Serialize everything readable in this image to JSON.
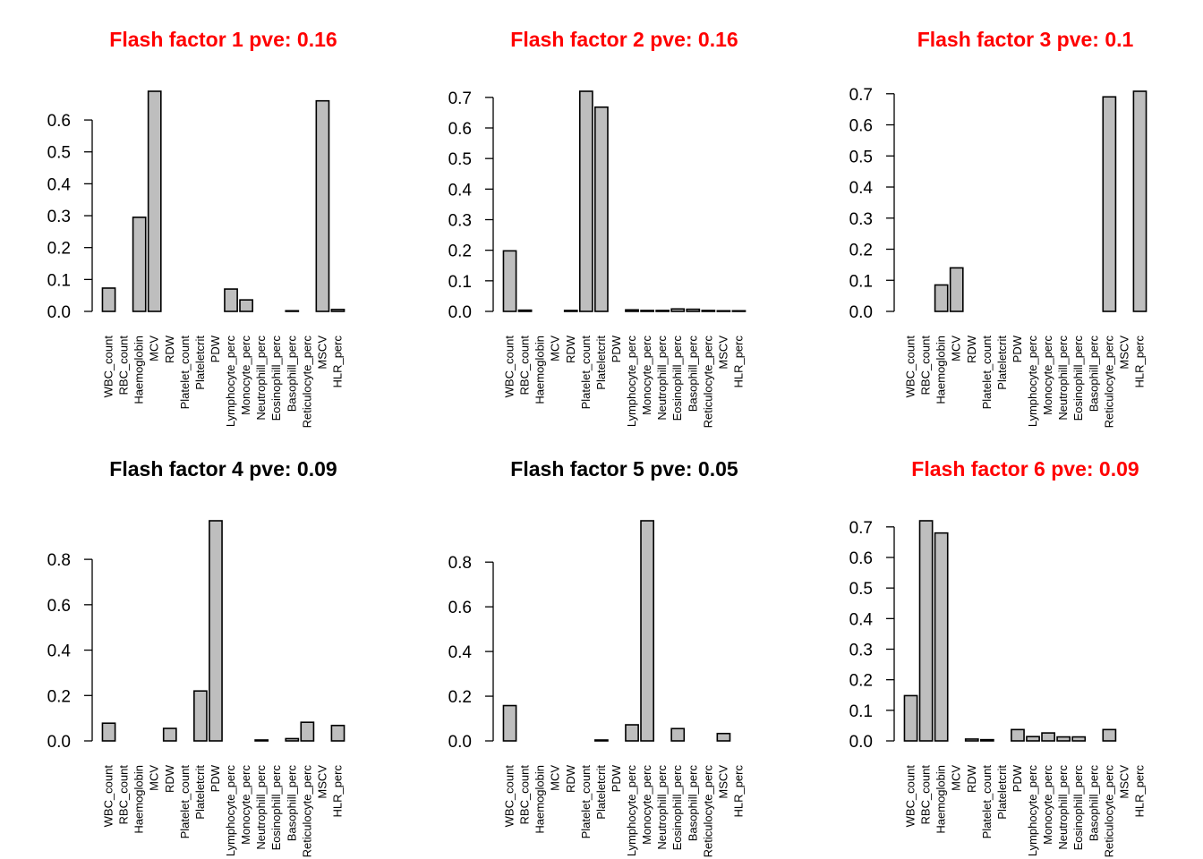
{
  "title_colors": {
    "red": "#ff0000",
    "black": "#000000"
  },
  "bar_fill": "#bebebe",
  "chart_data": [
    {
      "type": "bar",
      "title": "Flash factor 1 pve: 0.16",
      "title_color": "#ff0000",
      "categories": [
        "WBC_count",
        "RBC_count",
        "Haemoglobin",
        "MCV",
        "RDW",
        "Platelet_count",
        "Plateletcrit",
        "PDW",
        "Lymphocyte_perc",
        "Monocyte_perc",
        "Neutrophill_perc",
        "Eosinophill_perc",
        "Basophill_perc",
        "Reticulocyte_perc",
        "MSCV",
        "HLR_perc"
      ],
      "values": [
        0.073,
        0.0,
        0.295,
        0.69,
        0.0,
        0.0,
        0.0,
        0.0,
        0.07,
        0.036,
        0.0,
        0.0,
        0.002,
        0.0,
        0.66,
        0.006
      ],
      "yticks": [
        "0.0",
        "0.1",
        "0.2",
        "0.3",
        "0.4",
        "0.5",
        "0.6"
      ],
      "ylim": [
        0,
        0.69
      ]
    },
    {
      "type": "bar",
      "title": "Flash factor 2 pve: 0.16",
      "title_color": "#ff0000",
      "categories": [
        "WBC_count",
        "RBC_count",
        "Haemoglobin",
        "MCV",
        "RDW",
        "Platelet_count",
        "Plateletcrit",
        "PDW",
        "Lymphocyte_perc",
        "Monocyte_perc",
        "Neutrophill_perc",
        "Eosinophill_perc",
        "Basophill_perc",
        "Reticulocyte_perc",
        "MSCV",
        "HLR_perc"
      ],
      "values": [
        0.198,
        0.004,
        0.0,
        0.0,
        0.003,
        0.72,
        0.668,
        0.0,
        0.005,
        0.003,
        0.003,
        0.008,
        0.007,
        0.003,
        0.002,
        0.002
      ],
      "yticks": [
        "0.0",
        "0.1",
        "0.2",
        "0.3",
        "0.4",
        "0.5",
        "0.6",
        "0.7"
      ],
      "ylim": [
        0,
        0.72
      ]
    },
    {
      "type": "bar",
      "title": "Flash factor 3 pve: 0.1",
      "title_color": "#ff0000",
      "categories": [
        "WBC_count",
        "RBC_count",
        "Haemoglobin",
        "MCV",
        "RDW",
        "Platelet_count",
        "Plateletcrit",
        "PDW",
        "Lymphocyte_perc",
        "Monocyte_perc",
        "Neutrophill_perc",
        "Eosinophill_perc",
        "Basophill_perc",
        "Reticulocyte_perc",
        "MSCV",
        "HLR_perc"
      ],
      "values": [
        0.0,
        0.0,
        0.085,
        0.14,
        0.0,
        0.0,
        0.0,
        0.0,
        0.0,
        0.0,
        0.0,
        0.0,
        0.0,
        0.69,
        0.0,
        0.708
      ],
      "yticks": [
        "0.0",
        "0.1",
        "0.2",
        "0.3",
        "0.4",
        "0.5",
        "0.6",
        "0.7"
      ],
      "ylim": [
        0,
        0.708
      ]
    },
    {
      "type": "bar",
      "title": "Flash factor 4 pve: 0.09",
      "title_color": "#000000",
      "categories": [
        "WBC_count",
        "RBC_count",
        "Haemoglobin",
        "MCV",
        "RDW",
        "Platelet_count",
        "Plateletcrit",
        "PDW",
        "Lymphocyte_perc",
        "Monocyte_perc",
        "Neutrophill_perc",
        "Eosinophill_perc",
        "Basophill_perc",
        "Reticulocyte_perc",
        "MSCV",
        "HLR_perc"
      ],
      "values": [
        0.078,
        0.0,
        0.0,
        0.0,
        0.055,
        0.0,
        0.22,
        0.97,
        0.0,
        0.0,
        0.004,
        0.0,
        0.01,
        0.082,
        0.0,
        0.068
      ],
      "yticks": [
        "0.0",
        "0.2",
        "0.4",
        "0.6",
        "0.8"
      ],
      "ylim": [
        0,
        0.97
      ]
    },
    {
      "type": "bar",
      "title": "Flash factor 5 pve: 0.05",
      "title_color": "#000000",
      "categories": [
        "WBC_count",
        "RBC_count",
        "Haemoglobin",
        "MCV",
        "RDW",
        "Platelet_count",
        "Plateletcrit",
        "PDW",
        "Lymphocyte_perc",
        "Monocyte_perc",
        "Neutrophill_perc",
        "Eosinophill_perc",
        "Basophill_perc",
        "Reticulocyte_perc",
        "MSCV",
        "HLR_perc"
      ],
      "values": [
        0.158,
        0.0,
        0.0,
        0.0,
        0.0,
        0.0,
        0.004,
        0.0,
        0.072,
        0.985,
        0.0,
        0.055,
        0.0,
        0.0,
        0.033,
        0.0
      ],
      "yticks": [
        "0.0",
        "0.2",
        "0.4",
        "0.6",
        "0.8"
      ],
      "ylim": [
        0,
        0.985
      ]
    },
    {
      "type": "bar",
      "title": "Flash factor 6 pve: 0.09",
      "title_color": "#ff0000",
      "categories": [
        "WBC_count",
        "RBC_count",
        "Haemoglobin",
        "MCV",
        "RDW",
        "Platelet_count",
        "Plateletcrit",
        "PDW",
        "Lymphocyte_perc",
        "Monocyte_perc",
        "Neutrophill_perc",
        "Eosinophill_perc",
        "Basophill_perc",
        "Reticulocyte_perc",
        "MSCV",
        "HLR_perc"
      ],
      "values": [
        0.148,
        0.72,
        0.68,
        0.0,
        0.006,
        0.004,
        0.0,
        0.037,
        0.014,
        0.026,
        0.013,
        0.013,
        0.0,
        0.037,
        0.0,
        0.0
      ],
      "yticks": [
        "0.0",
        "0.1",
        "0.2",
        "0.3",
        "0.4",
        "0.5",
        "0.6",
        "0.7"
      ],
      "ylim": [
        0,
        0.72
      ]
    }
  ]
}
